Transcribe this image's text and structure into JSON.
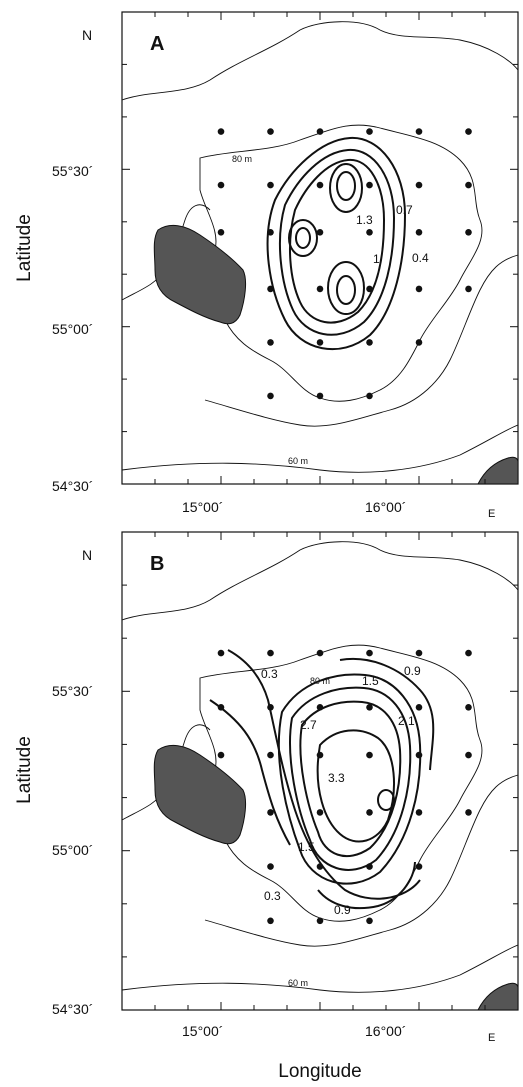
{
  "chart_data": [
    {
      "type": "contour",
      "panel": "A",
      "north_label": "N",
      "east_label": "E",
      "ylabel": "Latitude",
      "xlabel": "",
      "yticks": [
        "55°30´",
        "55°00´",
        "54°30´"
      ],
      "xticks": [
        "15°00´",
        "16°00´"
      ],
      "xlim": [
        "14°30´",
        "16°30´"
      ],
      "ylim": [
        "54°30´",
        "56°00´"
      ],
      "depth_labels": [
        "80 m",
        "60 m"
      ],
      "contour_labels": [
        "1.3",
        "0.7",
        "1",
        "0.4"
      ],
      "stations": [
        [
          15.0,
          55.62
        ],
        [
          15.25,
          55.62
        ],
        [
          15.5,
          55.62
        ],
        [
          15.75,
          55.62
        ],
        [
          16.0,
          55.62
        ],
        [
          16.25,
          55.62
        ],
        [
          15.0,
          55.45
        ],
        [
          15.25,
          55.45
        ],
        [
          15.5,
          55.45
        ],
        [
          15.75,
          55.45
        ],
        [
          16.0,
          55.45
        ],
        [
          16.25,
          55.45
        ],
        [
          15.0,
          55.3
        ],
        [
          15.25,
          55.3
        ],
        [
          15.5,
          55.3
        ],
        [
          15.75,
          55.3
        ],
        [
          16.0,
          55.3
        ],
        [
          16.25,
          55.3
        ],
        [
          15.25,
          55.12
        ],
        [
          15.5,
          55.12
        ],
        [
          15.75,
          55.12
        ],
        [
          16.0,
          55.12
        ],
        [
          16.25,
          55.12
        ],
        [
          15.25,
          54.95
        ],
        [
          15.5,
          54.95
        ],
        [
          15.75,
          54.95
        ],
        [
          16.0,
          54.95
        ],
        [
          15.25,
          54.78
        ],
        [
          15.5,
          54.78
        ],
        [
          15.75,
          54.78
        ]
      ]
    },
    {
      "type": "contour",
      "panel": "B",
      "north_label": "N",
      "east_label": "E",
      "ylabel": "Latitude",
      "xlabel": "Longitude",
      "yticks": [
        "55°30´",
        "55°00´",
        "54°30´"
      ],
      "xticks": [
        "15°00´",
        "16°00´"
      ],
      "xlim": [
        "14°30´",
        "16°30´"
      ],
      "ylim": [
        "54°30´",
        "56°00´"
      ],
      "depth_labels": [
        "80 m",
        "60 m"
      ],
      "contour_labels": [
        "0.3",
        "0.9",
        "1.5",
        "2.7",
        "2.1",
        "3.3",
        "1.5",
        "0.3",
        "0.9"
      ],
      "stations": [
        [
          15.0,
          55.62
        ],
        [
          15.25,
          55.62
        ],
        [
          15.5,
          55.62
        ],
        [
          15.75,
          55.62
        ],
        [
          16.0,
          55.62
        ],
        [
          16.25,
          55.62
        ],
        [
          15.0,
          55.45
        ],
        [
          15.25,
          55.45
        ],
        [
          15.5,
          55.45
        ],
        [
          15.75,
          55.45
        ],
        [
          16.0,
          55.45
        ],
        [
          16.25,
          55.45
        ],
        [
          15.0,
          55.3
        ],
        [
          15.25,
          55.3
        ],
        [
          15.5,
          55.3
        ],
        [
          15.75,
          55.3
        ],
        [
          16.0,
          55.3
        ],
        [
          16.25,
          55.3
        ],
        [
          15.25,
          55.12
        ],
        [
          15.5,
          55.12
        ],
        [
          15.75,
          55.12
        ],
        [
          16.0,
          55.12
        ],
        [
          16.25,
          55.12
        ],
        [
          15.25,
          54.95
        ],
        [
          15.5,
          54.95
        ],
        [
          15.75,
          54.95
        ],
        [
          16.0,
          54.95
        ],
        [
          15.25,
          54.78
        ],
        [
          15.5,
          54.78
        ],
        [
          15.75,
          54.78
        ]
      ]
    }
  ]
}
